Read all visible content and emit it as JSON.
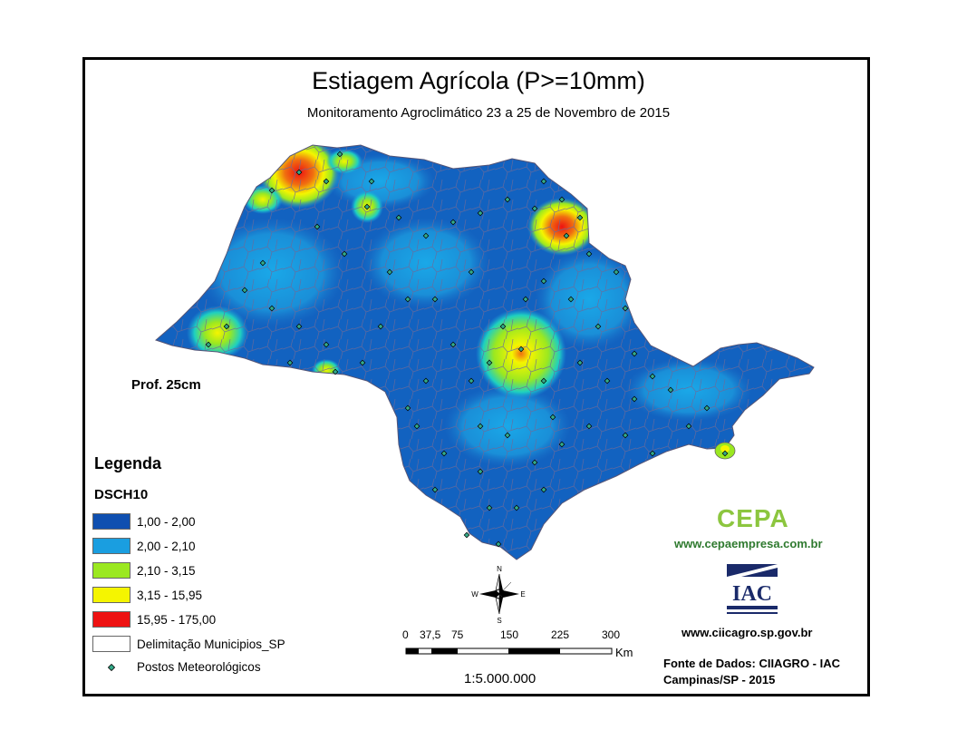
{
  "map": {
    "title": "Estiagem Agrícola (P>=10mm)",
    "subtitle": "Monitoramento Agroclimático 23 a 25 de Novembro de 2015",
    "depth_label": "Prof. 25cm"
  },
  "legend": {
    "title": "Legenda",
    "layer": "DSCH10",
    "classes": [
      {
        "label": "1,00 - 2,00",
        "color": "#0f4fb0"
      },
      {
        "label": "2,00 - 2,10",
        "color": "#1a9ee0"
      },
      {
        "label": "2,10 - 3,15",
        "color": "#9be820"
      },
      {
        "label": "3,15 - 15,95",
        "color": "#f5f500"
      },
      {
        "label": "15,95 - 175,00",
        "color": "#ee1212"
      }
    ],
    "boundary_label": "Delimitação Municipios_SP",
    "stations_label": "Postos Meteorológicos"
  },
  "scale": {
    "ticks": [
      "0",
      "37,5",
      "75",
      "150",
      "225",
      "300"
    ],
    "unit": "Km",
    "ratio": "1:5.000.000"
  },
  "compass": {
    "n": "N",
    "s": "S",
    "e": "E",
    "w": "W"
  },
  "credits": {
    "cepa_logo": "CEPA",
    "cepa_url": "www.cepaempresa.com.br",
    "iac_logo": "IAC",
    "ciiagro_url": "www.ciicagro.sp.gov.br",
    "source_line1": "Fonte de Dados: CIIAGRO - IAC",
    "source_line2": "Campinas/SP - 2015"
  }
}
